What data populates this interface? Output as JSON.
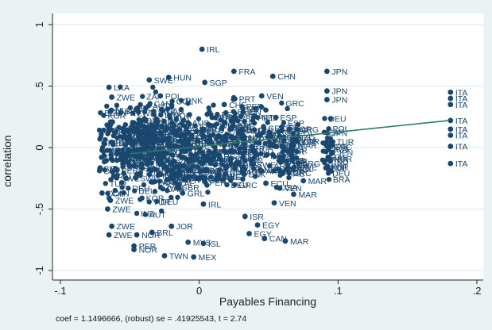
{
  "chart_data": {
    "type": "scatter",
    "xlabel": "Payables Financing",
    "ylabel": "correlation",
    "xlim": [
      -0.1,
      0.2
    ],
    "ylim": [
      -1,
      1
    ],
    "x_ticks": [
      -0.1,
      0,
      0.1,
      0.2
    ],
    "x_tick_labels": [
      "-.1",
      "0",
      ".1",
      ".2"
    ],
    "y_ticks": [
      -1,
      -0.5,
      0,
      0.5,
      1
    ],
    "y_tick_labels": [
      "-1",
      "-.5",
      "0",
      ".5",
      "1"
    ],
    "grid": "horizontal",
    "note": "coef = 1.1496666, (robust) se = .41925543, t = 2.74",
    "colors": {
      "points": "#1a476f",
      "fit_line": "#2e7d6b",
      "plot_bg": "#ffffff",
      "outer_bg": "#eaf2f3",
      "grid": "#e2ebee"
    },
    "fit_line": {
      "x": [
        -0.05,
        0.18
      ],
      "y": [
        -0.05,
        0.22
      ]
    },
    "labeled_points": [
      {
        "x": 0.002,
        "y": 0.8,
        "label": "IRL"
      },
      {
        "x": -0.022,
        "y": 0.57,
        "label": "HUN"
      },
      {
        "x": -0.036,
        "y": 0.55,
        "label": "SWE"
      },
      {
        "x": 0.004,
        "y": 0.53,
        "label": "SGP"
      },
      {
        "x": 0.025,
        "y": 0.62,
        "label": "FRA"
      },
      {
        "x": 0.053,
        "y": 0.58,
        "label": "CHN"
      },
      {
        "x": 0.092,
        "y": 0.62,
        "label": "JPN"
      },
      {
        "x": 0.092,
        "y": 0.46,
        "label": "JPN"
      },
      {
        "x": 0.092,
        "y": 0.39,
        "label": "JPN"
      },
      {
        "x": 0.092,
        "y": 0.12,
        "label": "JPN"
      },
      {
        "x": 0.092,
        "y": 0.01,
        "label": "JPN"
      },
      {
        "x": 0.096,
        "y": -0.04,
        "label": "JPN"
      },
      {
        "x": -0.065,
        "y": 0.49,
        "label": "LKA"
      },
      {
        "x": -0.063,
        "y": 0.41,
        "label": "ZWE"
      },
      {
        "x": -0.028,
        "y": 0.42,
        "label": "POL"
      },
      {
        "x": 0.018,
        "y": 0.35,
        "label": "CHE"
      },
      {
        "x": 0.045,
        "y": 0.42,
        "label": "VEN"
      },
      {
        "x": 0.068,
        "y": 0.02,
        "label": "MAR"
      },
      {
        "x": 0.075,
        "y": -0.27,
        "label": "MAR"
      },
      {
        "x": 0.068,
        "y": -0.38,
        "label": "MAR"
      },
      {
        "x": 0.054,
        "y": -0.45,
        "label": "VEN"
      },
      {
        "x": 0.033,
        "y": -0.56,
        "label": "ISR"
      },
      {
        "x": 0.042,
        "y": -0.63,
        "label": "EGY"
      },
      {
        "x": 0.036,
        "y": -0.7,
        "label": "EGY"
      },
      {
        "x": 0.047,
        "y": -0.74,
        "label": "CAN"
      },
      {
        "x": 0.062,
        "y": -0.76,
        "label": "MAR"
      },
      {
        "x": -0.008,
        "y": -0.77,
        "label": "MYS"
      },
      {
        "x": 0.003,
        "y": -0.78,
        "label": "ISL"
      },
      {
        "x": -0.047,
        "y": -0.83,
        "label": "NOR"
      },
      {
        "x": -0.047,
        "y": -0.8,
        "label": "PER"
      },
      {
        "x": -0.025,
        "y": -0.88,
        "label": "TWN"
      },
      {
        "x": -0.004,
        "y": -0.89,
        "label": "MEX"
      },
      {
        "x": -0.065,
        "y": -0.71,
        "label": "ZWE"
      },
      {
        "x": -0.063,
        "y": -0.64,
        "label": "ZWE"
      },
      {
        "x": -0.045,
        "y": -0.71,
        "label": "NOR"
      },
      {
        "x": -0.034,
        "y": -0.69,
        "label": "BRL"
      },
      {
        "x": -0.02,
        "y": -0.64,
        "label": "JOR"
      },
      {
        "x": -0.07,
        "y": -0.37,
        "label": "COL"
      },
      {
        "x": -0.066,
        "y": -0.5,
        "label": "ZWE"
      },
      {
        "x": -0.064,
        "y": -0.43,
        "label": "ZWE"
      },
      {
        "x": -0.012,
        "y": -0.37,
        "label": "GRL"
      },
      {
        "x": 0.003,
        "y": -0.46,
        "label": "IRL"
      },
      {
        "x": 0.048,
        "y": -0.29,
        "label": "ECU"
      },
      {
        "x": 0.06,
        "y": -0.21,
        "label": "ARE"
      },
      {
        "x": 0.063,
        "y": -0.11,
        "label": "LKA"
      },
      {
        "x": 0.058,
        "y": -0.33,
        "label": "VEN"
      },
      {
        "x": 0.181,
        "y": 0.45,
        "label": "ITA"
      },
      {
        "x": 0.181,
        "y": 0.4,
        "label": "ITA"
      },
      {
        "x": 0.181,
        "y": 0.35,
        "label": "ITA"
      },
      {
        "x": 0.181,
        "y": 0.22,
        "label": "ITA"
      },
      {
        "x": 0.181,
        "y": 0.15,
        "label": "ITA"
      },
      {
        "x": 0.181,
        "y": 0.1,
        "label": "ITA"
      },
      {
        "x": 0.181,
        "y": 0.01,
        "label": "ITA"
      },
      {
        "x": 0.181,
        "y": -0.13,
        "label": "ITA"
      }
    ]
  }
}
